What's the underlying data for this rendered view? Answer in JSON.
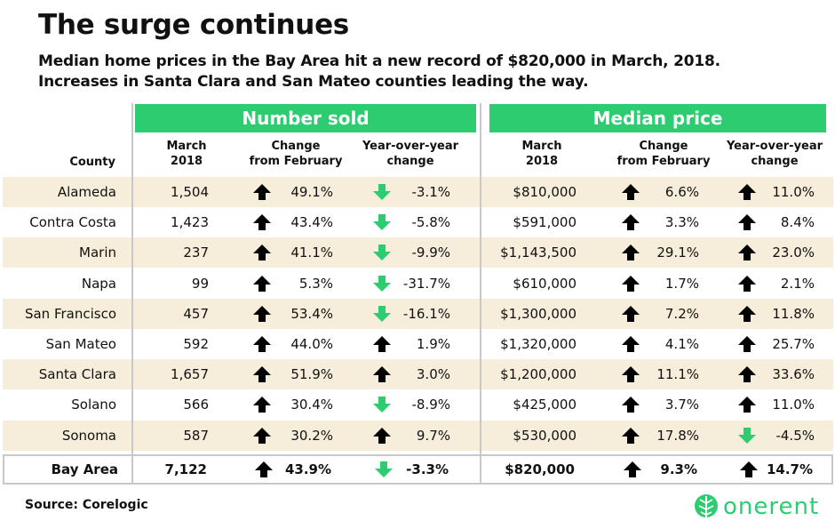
{
  "header": {
    "title": "The surge continues",
    "subtitle_line1": "Median home prices in the Bay Area hit a new record of $820,000 in March, 2018.",
    "subtitle_line2": "Increases in Santa Clara and San Mateo counties leading the way."
  },
  "groups": {
    "sold": "Number sold",
    "price": "Median price"
  },
  "columns": {
    "county": "County",
    "march1": "March",
    "march2": "2018",
    "change1": "Change",
    "change2": "from February",
    "yoy1": "Year-over-year",
    "yoy2": "change"
  },
  "colors": {
    "up": "#000000",
    "down": "#2ecc71",
    "header": "#2ecc71",
    "stripe": "#f6eedb",
    "brand": "#2ecc71"
  },
  "chart_data": {
    "type": "table",
    "title": "The surge continues",
    "rows": [
      {
        "county": "Alameda",
        "sold": "1,504",
        "sold_chg": "49.1%",
        "sold_chg_dir": "up",
        "sold_yoy": "-3.1%",
        "sold_yoy_dir": "down",
        "price": "$810,000",
        "price_chg": "6.6%",
        "price_chg_dir": "up",
        "price_yoy": "11.0%",
        "price_yoy_dir": "up"
      },
      {
        "county": "Contra Costa",
        "sold": "1,423",
        "sold_chg": "43.4%",
        "sold_chg_dir": "up",
        "sold_yoy": "-5.8%",
        "sold_yoy_dir": "down",
        "price": "$591,000",
        "price_chg": "3.3%",
        "price_chg_dir": "up",
        "price_yoy": "8.4%",
        "price_yoy_dir": "up"
      },
      {
        "county": "Marin",
        "sold": "237",
        "sold_chg": "41.1%",
        "sold_chg_dir": "up",
        "sold_yoy": "-9.9%",
        "sold_yoy_dir": "down",
        "price": "$1,143,500",
        "price_chg": "29.1%",
        "price_chg_dir": "up",
        "price_yoy": "23.0%",
        "price_yoy_dir": "up"
      },
      {
        "county": "Napa",
        "sold": "99",
        "sold_chg": "5.3%",
        "sold_chg_dir": "up",
        "sold_yoy": "-31.7%",
        "sold_yoy_dir": "down",
        "price": "$610,000",
        "price_chg": "1.7%",
        "price_chg_dir": "up",
        "price_yoy": "2.1%",
        "price_yoy_dir": "up"
      },
      {
        "county": "San Francisco",
        "sold": "457",
        "sold_chg": "53.4%",
        "sold_chg_dir": "up",
        "sold_yoy": "-16.1%",
        "sold_yoy_dir": "down",
        "price": "$1,300,000",
        "price_chg": "7.2%",
        "price_chg_dir": "up",
        "price_yoy": "11.8%",
        "price_yoy_dir": "up"
      },
      {
        "county": "San Mateo",
        "sold": "592",
        "sold_chg": "44.0%",
        "sold_chg_dir": "up",
        "sold_yoy": "1.9%",
        "sold_yoy_dir": "up",
        "price": "$1,320,000",
        "price_chg": "4.1%",
        "price_chg_dir": "up",
        "price_yoy": "25.7%",
        "price_yoy_dir": "up"
      },
      {
        "county": "Santa Clara",
        "sold": "1,657",
        "sold_chg": "51.9%",
        "sold_chg_dir": "up",
        "sold_yoy": "3.0%",
        "sold_yoy_dir": "up",
        "price": "$1,200,000",
        "price_chg": "11.1%",
        "price_chg_dir": "up",
        "price_yoy": "33.6%",
        "price_yoy_dir": "up"
      },
      {
        "county": "Solano",
        "sold": "566",
        "sold_chg": "30.4%",
        "sold_chg_dir": "up",
        "sold_yoy": "-8.9%",
        "sold_yoy_dir": "down",
        "price": "$425,000",
        "price_chg": "3.7%",
        "price_chg_dir": "up",
        "price_yoy": "11.0%",
        "price_yoy_dir": "up"
      },
      {
        "county": "Sonoma",
        "sold": "587",
        "sold_chg": "30.2%",
        "sold_chg_dir": "up",
        "sold_yoy": "9.7%",
        "sold_yoy_dir": "up",
        "price": "$530,000",
        "price_chg": "17.8%",
        "price_chg_dir": "up",
        "price_yoy": "-4.5%",
        "price_yoy_dir": "down"
      },
      {
        "county": "Bay Area",
        "sold": "7,122",
        "sold_chg": "43.9%",
        "sold_chg_dir": "up",
        "sold_yoy": "-3.3%",
        "sold_yoy_dir": "down",
        "price": "$820,000",
        "price_chg": "9.3%",
        "price_chg_dir": "up",
        "price_yoy": "14.7%",
        "price_yoy_dir": "up",
        "total": true
      }
    ]
  },
  "footer": {
    "source": "Source: Corelogic",
    "brand": "onerent",
    "brand_icon": "leaf-icon"
  }
}
